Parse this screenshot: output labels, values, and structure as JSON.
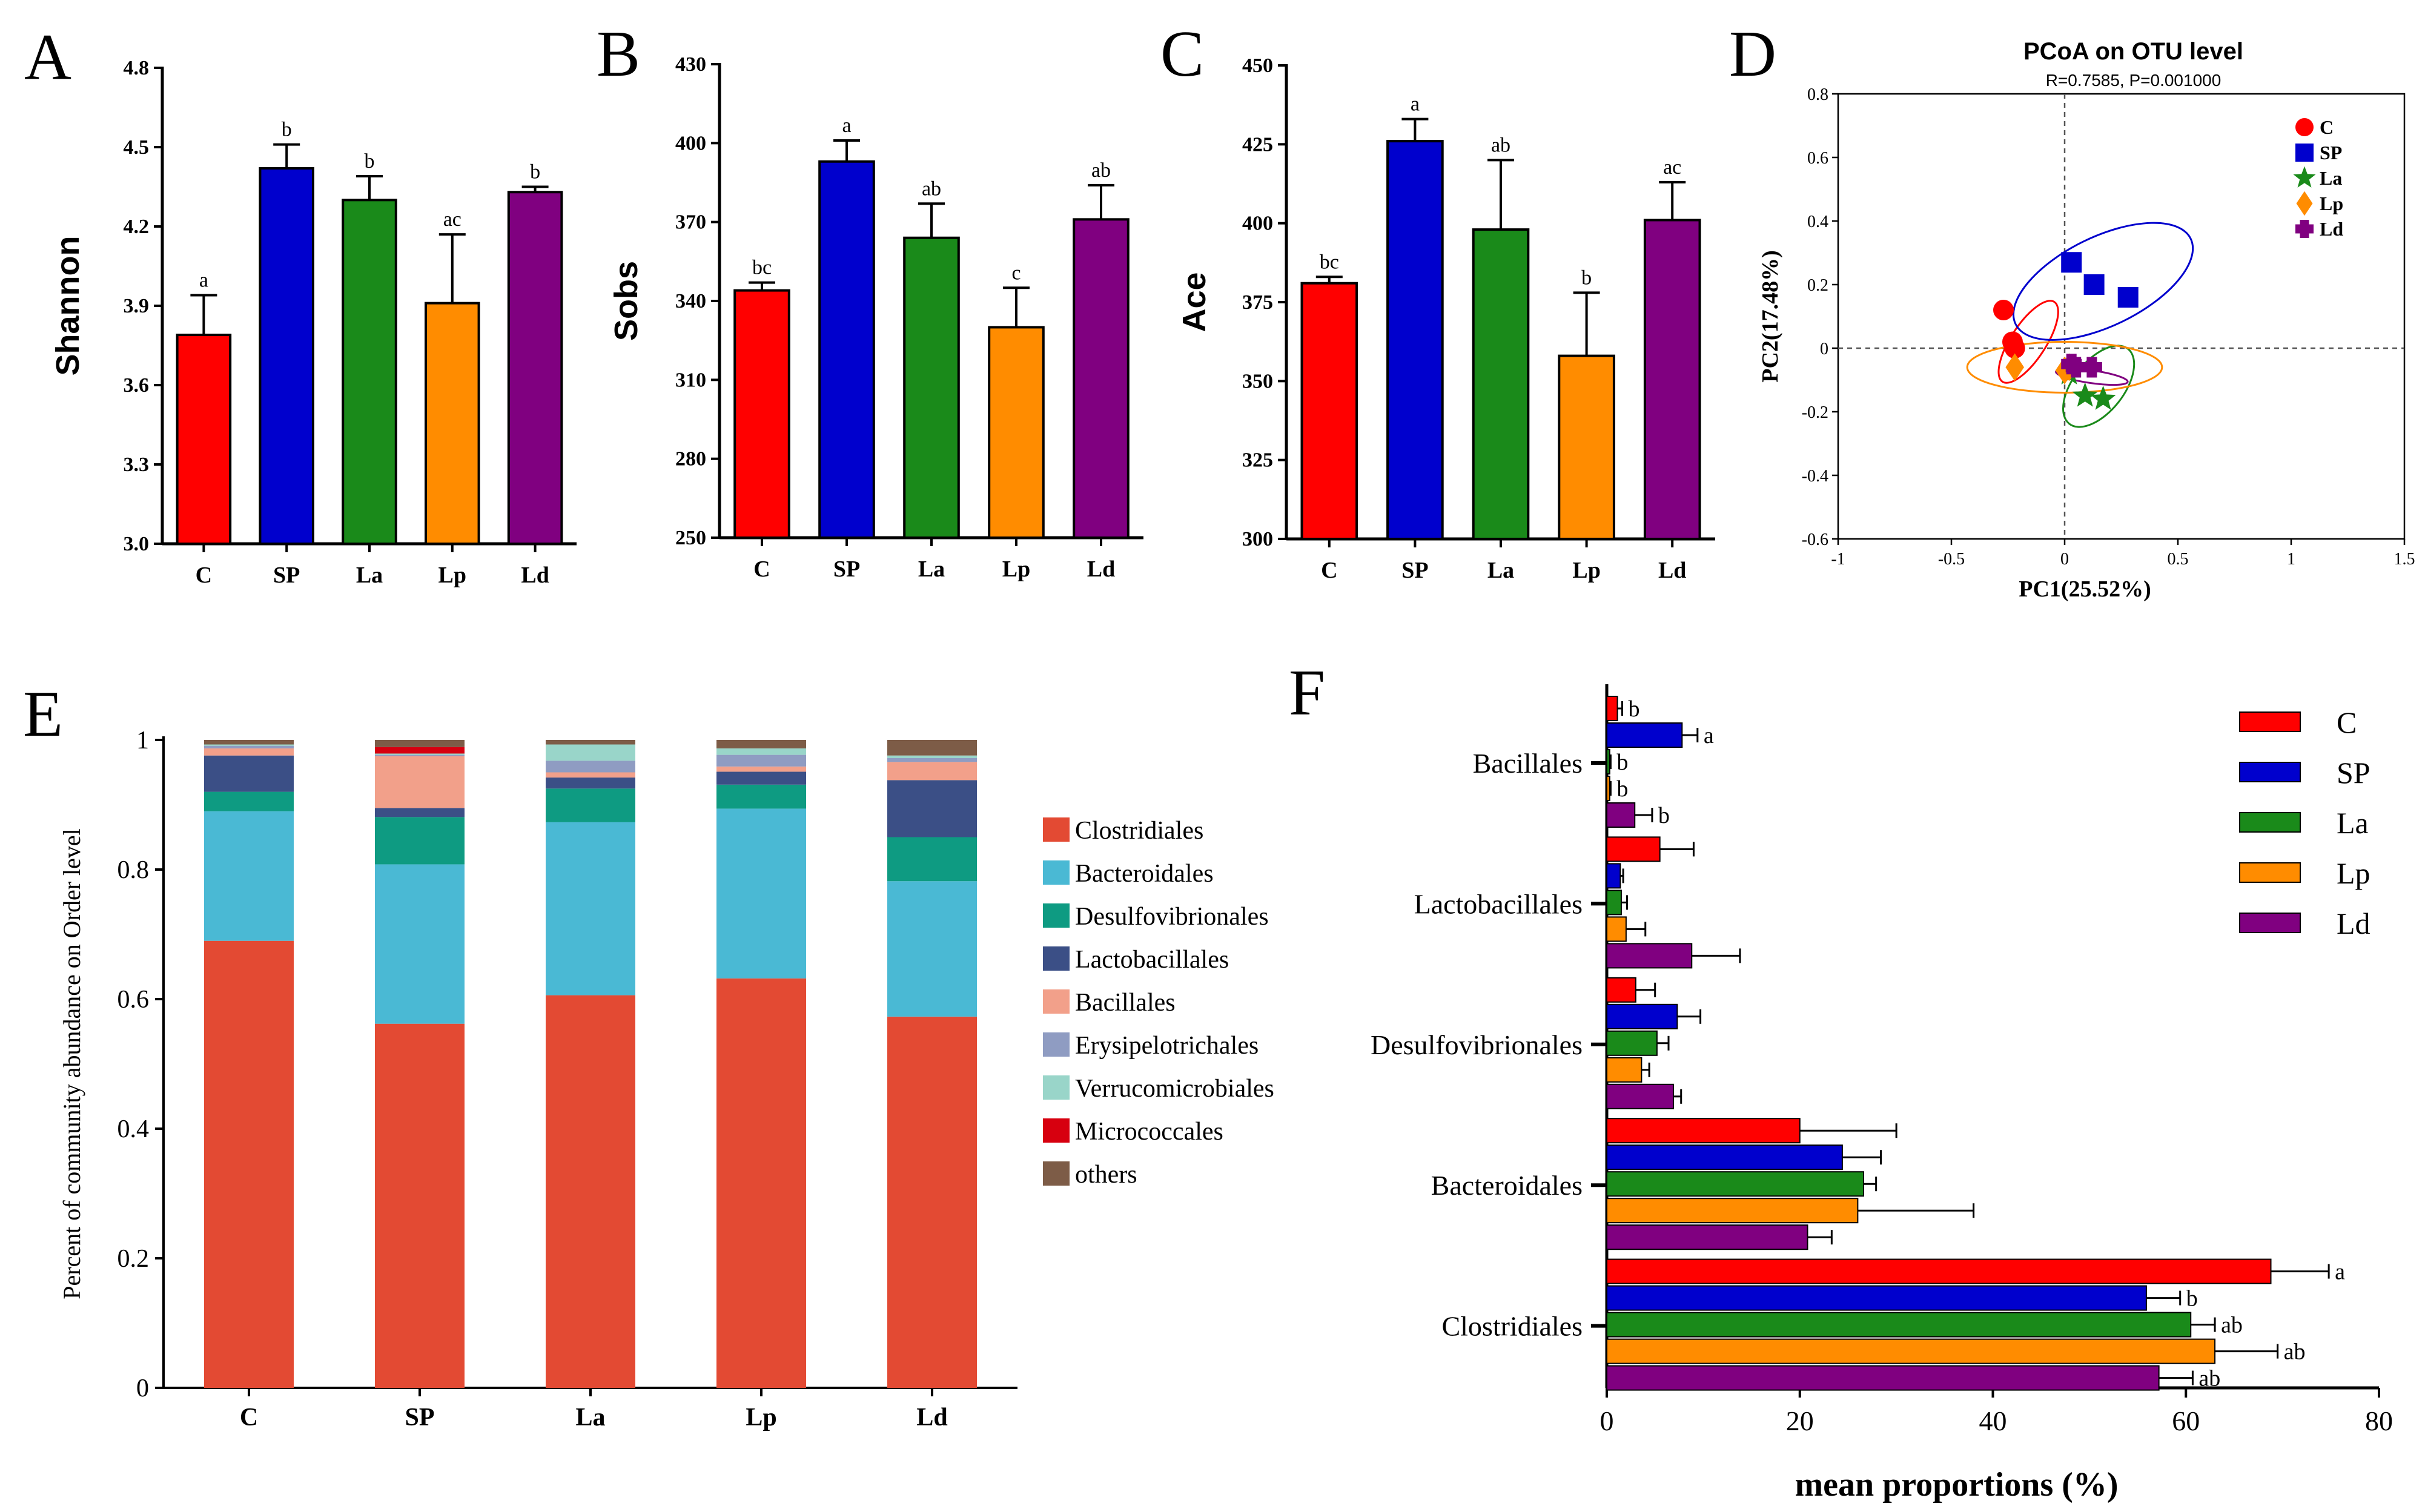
{
  "colors": {
    "C": "#ff0000",
    "SP": "#0000cd",
    "La": "#1a8a1a",
    "Lp": "#ff8c00",
    "Ld": "#800080",
    "Clostridiales": "#e34a33",
    "Bacteroidales": "#4ab9d4",
    "Desulfovibrionales": "#0e9b82",
    "Lactobacillales": "#3b4f86",
    "Bacillales": "#f2a08a",
    "Erysipelotrichales": "#8f9cc2",
    "Verrucomicrobiales": "#99d5c9",
    "Micrococcales": "#d7000f",
    "others": "#7d5c47"
  },
  "chart_data": [
    {
      "id": "A",
      "panel_label": "A",
      "type": "bar",
      "categories": [
        "C",
        "SP",
        "La",
        "Lp",
        "Ld"
      ],
      "values": [
        3.79,
        4.42,
        4.3,
        3.91,
        4.33
      ],
      "errors": [
        0.15,
        0.09,
        0.09,
        0.26,
        0.02
      ],
      "letters": [
        "a",
        "b",
        "b",
        "ac",
        "b"
      ],
      "ylabel": "Shannon",
      "ylim": [
        3.0,
        4.8
      ],
      "yticks": [
        "3.0",
        "3.3",
        "3.6",
        "3.9",
        "4.2",
        "4.5",
        "4.8"
      ]
    },
    {
      "id": "B",
      "panel_label": "B",
      "type": "bar",
      "categories": [
        "C",
        "SP",
        "La",
        "Lp",
        "Ld"
      ],
      "values": [
        344,
        393,
        364,
        330,
        371
      ],
      "errors": [
        3,
        8,
        13,
        15,
        13
      ],
      "letters": [
        "bc",
        "a",
        "ab",
        "c",
        "ab"
      ],
      "ylabel": "Sobs",
      "ylim": [
        250,
        430
      ],
      "yticks": [
        "250",
        "280",
        "310",
        "340",
        "370",
        "400",
        "430"
      ]
    },
    {
      "id": "C",
      "panel_label": "C",
      "type": "bar",
      "categories": [
        "C",
        "SP",
        "La",
        "Lp",
        "Ld"
      ],
      "values": [
        381,
        426,
        398,
        358,
        401
      ],
      "errors": [
        2,
        7,
        22,
        20,
        12
      ],
      "letters": [
        "bc",
        "a",
        "ab",
        "b",
        "ac"
      ],
      "ylabel": "Ace",
      "ylim": [
        300,
        450
      ],
      "yticks": [
        "300",
        "325",
        "350",
        "375",
        "400",
        "425",
        "450"
      ]
    },
    {
      "id": "D",
      "panel_label": "D",
      "type": "scatter",
      "title": "PCoA on OTU level",
      "subtitle": "R=0.7585, P=0.001000",
      "xlabel": "PC1(25.52%)",
      "ylabel": "PC2(17.48%)",
      "xlim": [
        -1,
        1.5
      ],
      "ylim": [
        -0.6,
        0.8
      ],
      "xticks": [
        "-1",
        "-0.5",
        "0",
        "0.5",
        "1",
        "1.5"
      ],
      "yticks": [
        "-0.6",
        "-0.4",
        "-0.2",
        "0",
        "0.2",
        "0.4",
        "0.6",
        "0.8"
      ],
      "series": [
        {
          "name": "C",
          "marker": "circle",
          "points": [
            [
              -0.27,
              0.12
            ],
            [
              -0.23,
              0.02
            ],
            [
              -0.22,
              0.0
            ]
          ],
          "ellipse": {
            "cx": -0.16,
            "cy": 0.02,
            "rx": 0.42,
            "ry": 0.055,
            "angle": 57
          }
        },
        {
          "name": "SP",
          "marker": "square",
          "points": [
            [
              0.03,
              0.27
            ],
            [
              0.13,
              0.2
            ],
            [
              0.28,
              0.16
            ]
          ],
          "ellipse": {
            "cx": 0.17,
            "cy": 0.21,
            "rx": 0.86,
            "ry": 0.14,
            "angle": 26
          }
        },
        {
          "name": "La",
          "marker": "star",
          "points": [
            [
              0.02,
              -0.08
            ],
            [
              0.09,
              -0.15
            ],
            [
              0.17,
              -0.16
            ]
          ],
          "ellipse": {
            "cx": 0.15,
            "cy": -0.12,
            "rx": 0.42,
            "ry": 0.08,
            "angle": 52
          }
        },
        {
          "name": "Lp",
          "marker": "diamond",
          "points": [
            [
              -0.22,
              -0.06
            ],
            [
              0.0,
              -0.07
            ],
            [
              0.02,
              -0.06
            ]
          ],
          "ellipse": {
            "cx": 0.0,
            "cy": -0.06,
            "rx": 0.86,
            "ry": 0.08,
            "angle": 0
          }
        },
        {
          "name": "Ld",
          "marker": "plus",
          "points": [
            [
              0.03,
              -0.05
            ],
            [
              0.05,
              -0.06
            ],
            [
              0.12,
              -0.06
            ]
          ],
          "ellipse": {
            "cx": 0.12,
            "cy": -0.09,
            "rx": 0.32,
            "ry": 0.02,
            "angle": -8
          }
        }
      ]
    },
    {
      "id": "E",
      "panel_label": "E",
      "type": "bar",
      "stacked": true,
      "categories": [
        "C",
        "SP",
        "La",
        "Lp",
        "Ld"
      ],
      "ylabel": "Percent of community abundance on Order level",
      "ylim": [
        0,
        1
      ],
      "yticks": [
        "0",
        "0.2",
        "0.4",
        "0.6",
        "0.8",
        "1"
      ],
      "series": [
        {
          "name": "Clostridiales",
          "values": [
            0.69,
            0.562,
            0.606,
            0.632,
            0.573
          ]
        },
        {
          "name": "Bacteroidales",
          "values": [
            0.2,
            0.246,
            0.267,
            0.262,
            0.209
          ]
        },
        {
          "name": "Desulfovibrionales",
          "values": [
            0.03,
            0.073,
            0.052,
            0.037,
            0.068
          ]
        },
        {
          "name": "Lactobacillales",
          "values": [
            0.056,
            0.014,
            0.017,
            0.02,
            0.088
          ]
        },
        {
          "name": "Bacillales",
          "values": [
            0.011,
            0.08,
            0.008,
            0.008,
            0.028
          ]
        },
        {
          "name": "Erysipelotrichales",
          "values": [
            0.004,
            0.002,
            0.018,
            0.018,
            0.006
          ]
        },
        {
          "name": "Verrucomicrobiales",
          "values": [
            0.002,
            0.002,
            0.025,
            0.01,
            0.004
          ]
        },
        {
          "name": "Micrococcales",
          "values": [
            0.0,
            0.01,
            0.0,
            0.0,
            0.0
          ]
        },
        {
          "name": "others",
          "values": [
            0.007,
            0.011,
            0.007,
            0.013,
            0.024
          ]
        }
      ]
    },
    {
      "id": "F",
      "panel_label": "F",
      "type": "bar",
      "orientation": "horizontal",
      "categories": [
        "Bacillales",
        "Lactobacillales",
        "Desulfovibrionales",
        "Bacteroidales",
        "Clostridiales"
      ],
      "groups": [
        "C",
        "SP",
        "La",
        "Lp",
        "Ld"
      ],
      "xlabel": "mean proportions (%)",
      "xlim": [
        0,
        80
      ],
      "xticks": [
        "0",
        "20",
        "40",
        "60",
        "80"
      ],
      "series": [
        {
          "name": "C",
          "values": [
            1.1,
            5.5,
            3.0,
            20.0,
            68.8
          ],
          "errors": [
            0.5,
            3.5,
            2.0,
            10.0,
            6.0
          ],
          "letters": [
            "b",
            "",
            "",
            "",
            "a"
          ]
        },
        {
          "name": "SP",
          "values": [
            7.8,
            1.4,
            7.3,
            24.4,
            55.9
          ],
          "errors": [
            1.6,
            0.3,
            2.4,
            4.0,
            3.5
          ],
          "letters": [
            "a",
            "",
            "",
            "",
            "b"
          ]
        },
        {
          "name": "La",
          "values": [
            0.3,
            1.5,
            5.2,
            26.6,
            60.5
          ],
          "errors": [
            0.1,
            0.6,
            1.2,
            1.3,
            2.5
          ],
          "letters": [
            "b",
            "",
            "",
            "",
            "ab"
          ]
        },
        {
          "name": "Lp",
          "values": [
            0.3,
            2.0,
            3.6,
            26.0,
            63.0
          ],
          "errors": [
            0.1,
            2.0,
            0.8,
            12.0,
            6.5
          ],
          "letters": [
            "b",
            "",
            "",
            "",
            "ab"
          ]
        },
        {
          "name": "Ld",
          "values": [
            2.9,
            8.8,
            6.9,
            20.8,
            57.2
          ],
          "errors": [
            1.8,
            5.0,
            0.8,
            2.5,
            3.5
          ],
          "letters": [
            "b",
            "",
            "",
            "",
            "ab"
          ]
        }
      ]
    }
  ]
}
